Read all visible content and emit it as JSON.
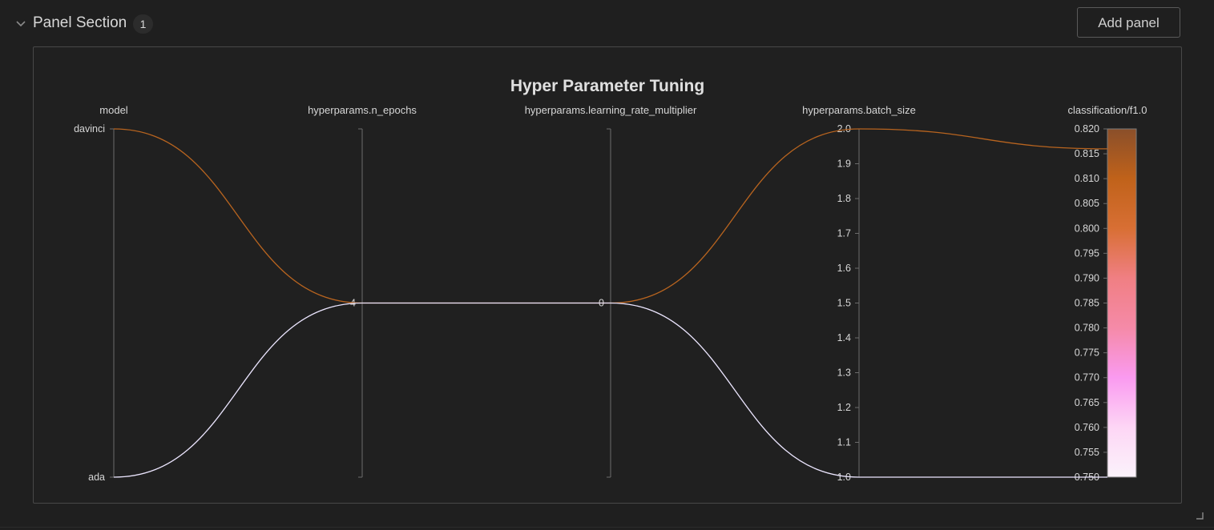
{
  "section": {
    "title": "Panel Section",
    "panel_count": "1",
    "add_panel_label": "Add panel"
  },
  "icons": {
    "collapse": "chevron-down-icon",
    "resize": "resize-corner-icon"
  },
  "chart_data": {
    "type": "parallel_coordinates",
    "title": "Hyper Parameter Tuning",
    "dimensions": [
      {
        "key": "model",
        "label": "model",
        "type": "categorical",
        "categories": [
          "ada",
          "davinci"
        ],
        "tick_labels": [
          "ada",
          "davinci"
        ]
      },
      {
        "key": "n_epochs",
        "label": "hyperparams.n_epochs",
        "type": "numeric",
        "range": [
          4,
          4
        ],
        "tick_labels": [
          "4"
        ]
      },
      {
        "key": "learning_rate_multiplier",
        "label": "hyperparams.learning_rate_multiplier",
        "type": "numeric",
        "range": [
          0,
          0
        ],
        "tick_labels": [
          "0"
        ]
      },
      {
        "key": "batch_size",
        "label": "hyperparams.batch_size",
        "type": "numeric",
        "range": [
          1.0,
          2.0
        ],
        "tick_labels": [
          "1.0",
          "1.1",
          "1.2",
          "1.3",
          "1.4",
          "1.5",
          "1.6",
          "1.7",
          "1.8",
          "1.9",
          "2.0"
        ]
      },
      {
        "key": "f1",
        "label": "classification/f1.0",
        "type": "numeric",
        "range": [
          0.75,
          0.82
        ],
        "tick_labels": [
          "0.750",
          "0.755",
          "0.760",
          "0.765",
          "0.770",
          "0.775",
          "0.780",
          "0.785",
          "0.790",
          "0.795",
          "0.800",
          "0.805",
          "0.810",
          "0.815",
          "0.820"
        ]
      }
    ],
    "runs": [
      {
        "model": "davinci",
        "n_epochs": 4,
        "learning_rate_multiplier": 0,
        "batch_size": 2.0,
        "f1": 0.816,
        "color": "#b8641f"
      },
      {
        "model": "ada",
        "n_epochs": 4,
        "learning_rate_multiplier": 0,
        "batch_size": 1.0,
        "f1": 0.75,
        "color": "#ece6ff"
      }
    ],
    "colorscale": {
      "dimension": "classification/f1.0",
      "stops": [
        "#fbf3fb",
        "#fdd6f5",
        "#fa9af0",
        "#f58aa8",
        "#f07f83",
        "#d86f34",
        "#c0621a",
        "#8a4f2a"
      ]
    },
    "grid": false,
    "legend": "none"
  },
  "colors": {
    "background": "#1f1f1f",
    "panel_border": "#484848",
    "axis": "#6c6c6c",
    "text": "#d6d6d6"
  }
}
